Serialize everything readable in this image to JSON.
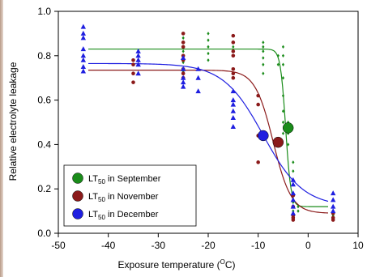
{
  "chart_data": {
    "type": "scatter",
    "xlabel_main": "Exposure temperature (",
    "xlabel_sup": "O",
    "xlabel_end": "C)",
    "ylabel": "Relative electrolyte leakage",
    "xlim": [
      -50,
      10
    ],
    "ylim": [
      0.0,
      1.0
    ],
    "xticks": [
      -50,
      -40,
      -30,
      -20,
      -10,
      0,
      10
    ],
    "xtick_labels": [
      "-50",
      "-40",
      "-30",
      "-20",
      "-10",
      "0",
      "10"
    ],
    "yticks": [
      0.0,
      0.2,
      0.4,
      0.6,
      0.8,
      1.0
    ],
    "ytick_labels": [
      "0.0",
      "0.2",
      "0.4",
      "0.6",
      "0.8",
      "1.0"
    ],
    "legend_position": "lower-left",
    "series": [
      {
        "legend_prefix": "LT",
        "legend_sub": "50",
        "legend_suffix": " in September",
        "color": "#1a8c1a",
        "marker": "diamond",
        "fit": {
          "ymin": 0.12,
          "ymax": 0.83,
          "x50": -4.5,
          "k": 1.9,
          "x_from": -44,
          "x_to": 4
        },
        "lt50": {
          "x": -4.0,
          "y": 0.475
        },
        "points": [
          [
            -25,
            0.8
          ],
          [
            -25,
            0.82
          ],
          [
            -25,
            0.84
          ],
          [
            -25,
            0.86
          ],
          [
            -25,
            0.88
          ],
          [
            -25,
            0.77
          ],
          [
            -25,
            0.73
          ],
          [
            -20,
            0.9
          ],
          [
            -20,
            0.87
          ],
          [
            -20,
            0.84
          ],
          [
            -20,
            0.81
          ],
          [
            -20,
            0.78
          ],
          [
            -15,
            0.84
          ],
          [
            -15,
            0.82
          ],
          [
            -15,
            0.8
          ],
          [
            -9,
            0.86
          ],
          [
            -9,
            0.84
          ],
          [
            -9,
            0.82
          ],
          [
            -9,
            0.79
          ],
          [
            -9,
            0.76
          ],
          [
            -9,
            0.72
          ],
          [
            -6,
            0.8
          ],
          [
            -6,
            0.76
          ],
          [
            -5,
            0.84
          ],
          [
            -5,
            0.8
          ],
          [
            -5,
            0.76
          ],
          [
            -5,
            0.7
          ],
          [
            -5,
            0.62
          ],
          [
            -5,
            0.55
          ],
          [
            -5,
            0.5
          ],
          [
            -5,
            0.45
          ],
          [
            -4,
            0.5
          ],
          [
            -4,
            0.45
          ],
          [
            -4,
            0.4
          ],
          [
            -3,
            0.32
          ],
          [
            -3,
            0.28
          ],
          [
            -3,
            0.22
          ],
          [
            -3,
            0.18
          ],
          [
            -3,
            0.14
          ],
          [
            -3,
            0.1
          ],
          [
            -3,
            0.08
          ],
          [
            -2,
            0.12
          ],
          [
            -2,
            0.1
          ],
          [
            5,
            0.12
          ],
          [
            5,
            0.1
          ],
          [
            5,
            0.08
          ]
        ]
      },
      {
        "legend_prefix": "LT",
        "legend_sub": "50",
        "legend_suffix": " in November",
        "color": "#8b1a1a",
        "marker": "circle",
        "fit": {
          "ymin": 0.09,
          "ymax": 0.735,
          "x50": -7.0,
          "k": 0.55,
          "x_from": -44,
          "x_to": 4
        },
        "lt50": {
          "x": -6.0,
          "y": 0.41
        },
        "points": [
          [
            -35,
            0.78
          ],
          [
            -35,
            0.76
          ],
          [
            -35,
            0.72
          ],
          [
            -35,
            0.68
          ],
          [
            -25,
            0.9
          ],
          [
            -25,
            0.86
          ],
          [
            -25,
            0.84
          ],
          [
            -25,
            0.8
          ],
          [
            -25,
            0.78
          ],
          [
            -25,
            0.74
          ],
          [
            -25,
            0.72
          ],
          [
            -25,
            0.7
          ],
          [
            -15,
            0.89
          ],
          [
            -15,
            0.86
          ],
          [
            -15,
            0.82
          ],
          [
            -15,
            0.8
          ],
          [
            -15,
            0.74
          ],
          [
            -15,
            0.72
          ],
          [
            -15,
            0.7
          ],
          [
            -10,
            0.62
          ],
          [
            -10,
            0.58
          ],
          [
            -10,
            0.44
          ],
          [
            -10,
            0.32
          ],
          [
            -6,
            0.42
          ],
          [
            -6,
            0.4
          ],
          [
            -3,
            0.17
          ],
          [
            -3,
            0.12
          ],
          [
            -3,
            0.08
          ],
          [
            -3,
            0.07
          ],
          [
            -3,
            0.06
          ],
          [
            5,
            0.09
          ],
          [
            5,
            0.07
          ],
          [
            5,
            0.06
          ]
        ]
      },
      {
        "legend_prefix": "LT",
        "legend_sub": "50",
        "legend_suffix": " in December",
        "color": "#1f1fe0",
        "marker": "triangle",
        "fit": {
          "ymin": 0.12,
          "ymax": 0.765,
          "x50": -9.0,
          "k": 0.25,
          "x_from": -44,
          "x_to": 4
        },
        "lt50": {
          "x": -9.0,
          "y": 0.44
        },
        "points": [
          [
            -45,
            0.93
          ],
          [
            -45,
            0.9
          ],
          [
            -45,
            0.88
          ],
          [
            -45,
            0.83
          ],
          [
            -45,
            0.8
          ],
          [
            -45,
            0.78
          ],
          [
            -45,
            0.75
          ],
          [
            -45,
            0.73
          ],
          [
            -34,
            0.82
          ],
          [
            -34,
            0.8
          ],
          [
            -34,
            0.78
          ],
          [
            -34,
            0.76
          ],
          [
            -34,
            0.72
          ],
          [
            -25,
            0.79
          ],
          [
            -25,
            0.74
          ],
          [
            -25,
            0.7
          ],
          [
            -25,
            0.68
          ],
          [
            -25,
            0.66
          ],
          [
            -22,
            0.74
          ],
          [
            -22,
            0.7
          ],
          [
            -22,
            0.64
          ],
          [
            -15,
            0.64
          ],
          [
            -15,
            0.6
          ],
          [
            -15,
            0.58
          ],
          [
            -15,
            0.55
          ],
          [
            -15,
            0.52
          ],
          [
            -15,
            0.48
          ],
          [
            -3,
            0.24
          ],
          [
            -3,
            0.22
          ],
          [
            -3,
            0.18
          ],
          [
            -3,
            0.15
          ],
          [
            -3,
            0.12
          ],
          [
            -3,
            0.09
          ],
          [
            5,
            0.18
          ],
          [
            5,
            0.15
          ],
          [
            5,
            0.12
          ],
          [
            5,
            0.1
          ]
        ]
      }
    ]
  }
}
